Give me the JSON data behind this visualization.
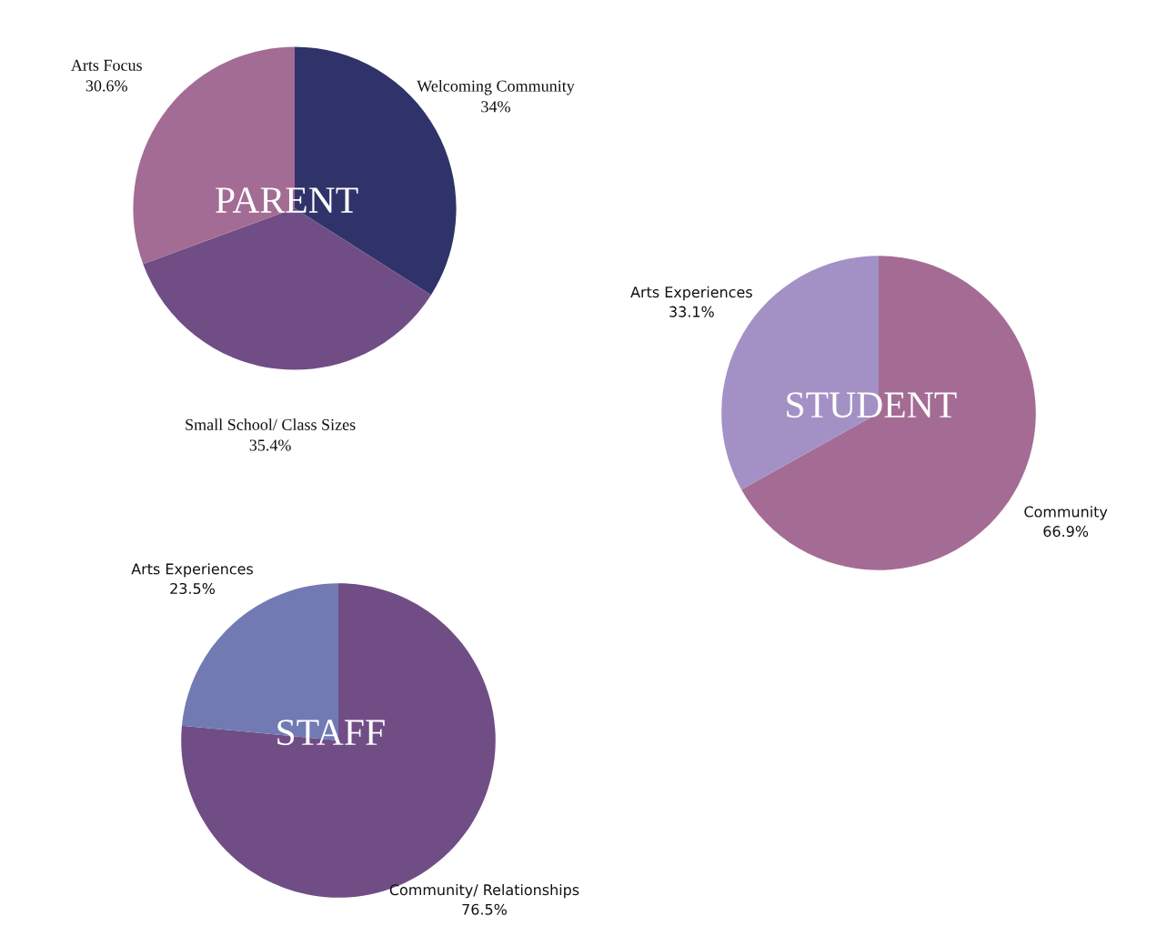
{
  "chart_data": [
    {
      "type": "pie",
      "title": "PARENT",
      "categories": [
        "Welcoming Community",
        "Small School/ Class Sizes",
        "Arts Focus"
      ],
      "values": [
        34,
        35.4,
        30.6
      ],
      "value_labels": [
        "34%",
        "35.4%",
        "30.6%"
      ],
      "colors": [
        "#303369",
        "#714d85",
        "#a36c94"
      ]
    },
    {
      "type": "pie",
      "title": "STUDENT",
      "categories": [
        "Community",
        "Arts Experiences"
      ],
      "values": [
        66.9,
        33.1
      ],
      "value_labels": [
        "66.9%",
        "33.1%"
      ],
      "colors": [
        "#a46c94",
        "#a391c6"
      ]
    },
    {
      "type": "pie",
      "title": "STAFF",
      "categories": [
        "Community/ Relationships",
        "Arts Experiences"
      ],
      "values": [
        76.5,
        23.5
      ],
      "value_labels": [
        "76.5%",
        "23.5%"
      ],
      "colors": [
        "#714d85",
        "#717ab3"
      ]
    }
  ]
}
